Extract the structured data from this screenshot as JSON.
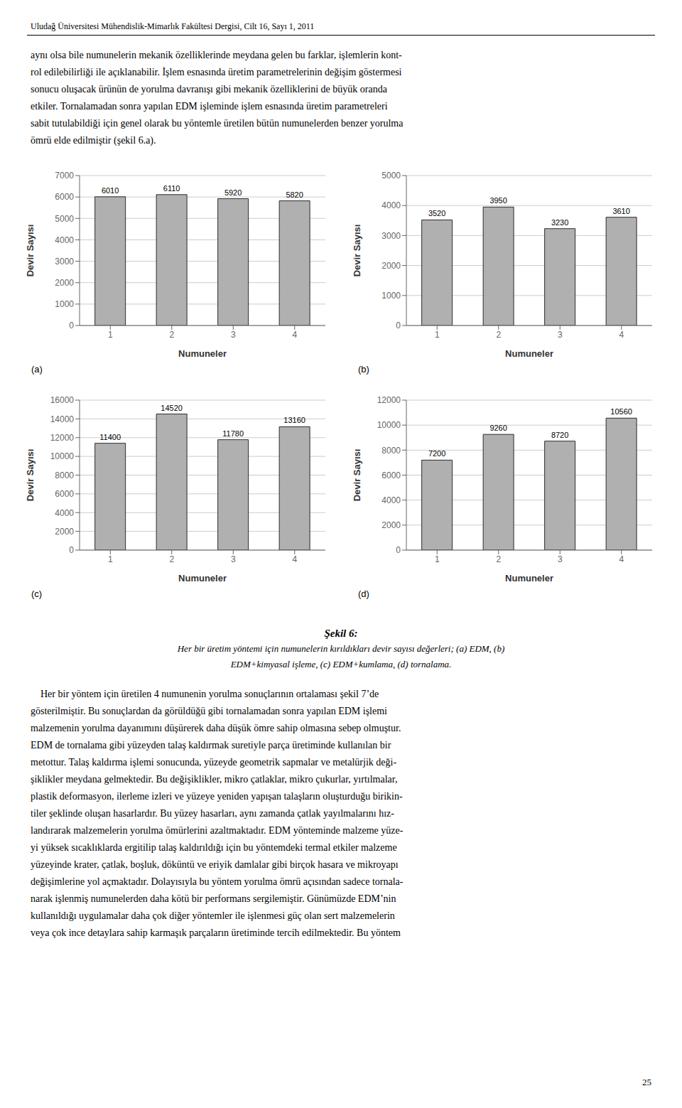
{
  "header": "Uludağ Üniversitesi Mühendislik-Mimarlık Fakültesi Dergisi, Cilt 16, Sayı 1, 2011",
  "paragraph1": [
    "aynı olsa bile numunelerin mekanik özelliklerinde meydana gelen bu farklar, işlemlerin kont-",
    "rol edilebilirliği ile açıklanabilir. İşlem esnasında üretim parametrelerinin değişim göstermesi",
    "sonucu oluşacak ürünün de yorulma davranışı gibi mekanik özelliklerini de büyük oranda",
    "etkiler. Tornalamadan sonra yapılan EDM işleminde işlem esnasında üretim parametreleri",
    "sabit tutulabildiği için genel olarak bu yöntemle üretilen bütün numunelerden benzer yorulma",
    "ömrü elde edilmiştir (şekil 6.a)."
  ],
  "caption": [
    "Şekil 6:",
    "Her bir üretim yöntemi için numunelerin kırıldıkları devir sayısı değerleri; (a) EDM, (b)",
    "EDM+kimyasal işleme, (c) EDM+kumlama, (d) tornalama."
  ],
  "paragraph2": [
    "    Her bir yöntem için üretilen 4 numunenin yorulma sonuçlarının ortalaması şekil 7’de",
    "gösterilmiştir. Bu sonuçlardan da görüldüğü gibi tornalamadan sonra yapılan EDM işlemi",
    "malzemenin yorulma dayanımını düşürerek daha düşük ömre sahip olmasına sebep olmuştur.",
    "EDM de tornalama gibi yüzeyden talaş kaldırmak suretiyle parça üretiminde kullanılan bir",
    "metottur. Talaş kaldırma işlemi sonucunda, yüzeyde geometrik sapmalar ve metalürjik deği-",
    "şiklikler meydana gelmektedir. Bu değişiklikler, mikro çatlaklar, mikro çukurlar, yırtılmalar,",
    "plastik deformasyon, ilerleme izleri ve yüzeye yeniden yapışan talaşların oluşturduğu birikin-",
    "tiler şeklinde oluşan hasarlardır. Bu yüzey hasarları, aynı zamanda çatlak yayılmalarını hız-",
    "landırarak malzemelerin yorulma ömürlerini azaltmaktadır. EDM yönteminde malzeme yüze-",
    "yi yüksek sıcaklıklarda ergitilip talaş kaldırıldığı için bu yöntemdeki termal etkiler malzeme",
    "yüzeyinde krater, çatlak, boşluk, döküntü ve eriyik damlalar gibi birçok hasara ve mikroyapı",
    "değişimlerine yol açmaktadır. Dolayısıyla bu yöntem yorulma ömrü açısından sadece tornala-",
    "narak işlenmiş numunelerden daha kötü bir performans sergilemiştir. Günümüzde EDM’nin",
    "kullanıldığı uygulamalar daha çok diğer yöntemler ile işlenmesi güç olan sert malzemelerin",
    "veya çok ince detaylara sahip karmaşık parçaların üretiminde tercih edilmektedir. Bu yöntem"
  ],
  "page_number": "25",
  "chart_data": [
    {
      "type": "bar",
      "annotations": [
        "(a)"
      ],
      "x_label": "Numuneler",
      "y_label": "Devir Sayısı",
      "categories": [
        "1",
        "2",
        "3",
        "4"
      ],
      "values": [
        6010,
        6110,
        5920,
        5820
      ],
      "color": "#b0b0b0",
      "ylim": [
        0,
        7000
      ],
      "yticks": [
        0,
        1000,
        2000,
        3000,
        4000,
        5000,
        6000,
        7000
      ],
      "grid": true,
      "data_labels": true
    },
    {
      "type": "bar",
      "annotations": [
        "(b)"
      ],
      "x_label": "Numuneler",
      "y_label": "Devir Sayısı",
      "categories": [
        "1",
        "2",
        "3",
        "4"
      ],
      "values": [
        3520,
        3950,
        3230,
        3610
      ],
      "color": "#b0b0b0",
      "ylim": [
        0,
        5000
      ],
      "yticks": [
        0,
        1000,
        2000,
        3000,
        4000,
        5000
      ],
      "grid": true,
      "data_labels": true
    },
    {
      "type": "bar",
      "annotations": [
        "(c)"
      ],
      "x_label": "Numuneler",
      "y_label": "Devir Sayısı",
      "categories": [
        "1",
        "2",
        "3",
        "4"
      ],
      "values": [
        11400,
        14520,
        11780,
        13160
      ],
      "color": "#b0b0b0",
      "ylim": [
        0,
        16000
      ],
      "yticks": [
        0,
        2000,
        4000,
        6000,
        8000,
        10000,
        12000,
        14000,
        16000
      ],
      "grid": true,
      "data_labels": true
    },
    {
      "type": "bar",
      "annotations": [
        "(d)"
      ],
      "x_label": "Numuneler",
      "y_label": "Devir Sayısı",
      "categories": [
        "1",
        "2",
        "3",
        "4"
      ],
      "values": [
        7200,
        9260,
        8720,
        10560
      ],
      "color": "#b0b0b0",
      "ylim": [
        0,
        12000
      ],
      "yticks": [
        0,
        2000,
        4000,
        6000,
        8000,
        10000,
        12000
      ],
      "grid": true,
      "data_labels": true
    }
  ]
}
